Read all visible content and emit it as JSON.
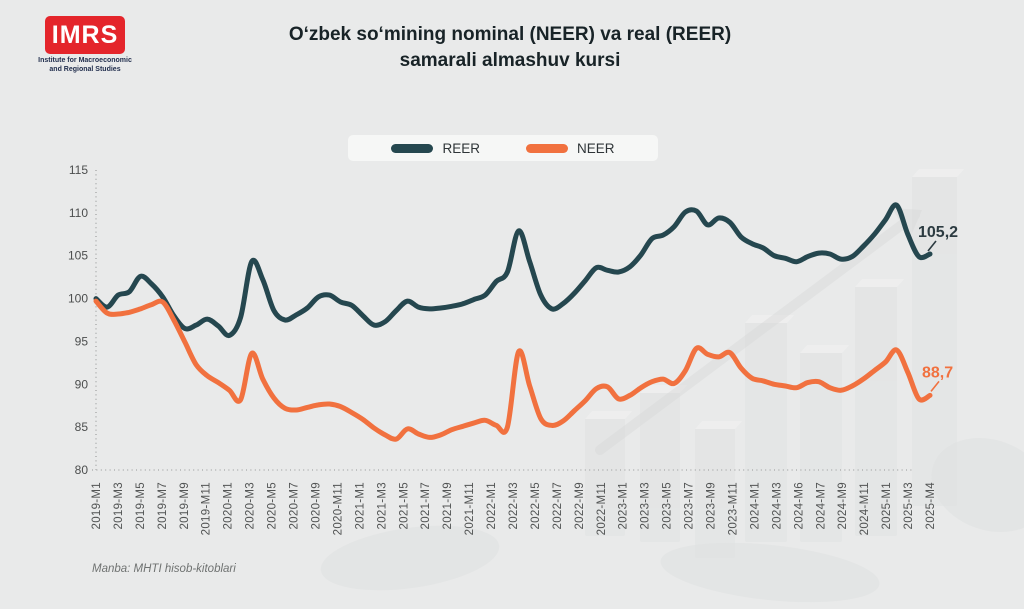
{
  "header": {
    "logo": {
      "acronym": "IMRS",
      "subtitle_line1": "Institute for Macroeconomic",
      "subtitle_line2": "and Regional Studies",
      "brand_color": "#e4252b"
    },
    "title_line1": "O‘zbek so‘mining nominal (NEER) va real (REER)",
    "title_line2": "samarali almashuv kursi"
  },
  "legend": [
    {
      "label": "REER",
      "color": "#25474f"
    },
    {
      "label": "NEER",
      "color": "#f1713f"
    }
  ],
  "source": "Manba: MHTI hisob-kitoblari",
  "colors": {
    "background": "#e9eaea",
    "axis_dots": "#b0b1b1",
    "reer_line": "#25474f",
    "neer_line": "#f1713f"
  },
  "chart_data": {
    "type": "line",
    "title": "O‘zbek so‘mining nominal (NEER) va real (REER) samarali almashuv kursi",
    "xlabel": "",
    "ylabel": "",
    "ylim": [
      80,
      115
    ],
    "yticks": [
      80,
      85,
      90,
      95,
      100,
      105,
      110,
      115
    ],
    "grid": false,
    "legend_position": "top-center",
    "x": [
      "2019-M1",
      "2019-M2",
      "2019-M3",
      "2019-M4",
      "2019-M5",
      "2019-M6",
      "2019-M7",
      "2019-M8",
      "2019-M9",
      "2019-M10",
      "2019-M11",
      "2019-M12",
      "2020-M1",
      "2020-M2",
      "2020-M3",
      "2020-M4",
      "2020-M5",
      "2020-M6",
      "2020-M7",
      "2020-M8",
      "2020-M9",
      "2020-M10",
      "2020-M11",
      "2020-M12",
      "2021-M1",
      "2021-M2",
      "2021-M3",
      "2021-M4",
      "2021-M5",
      "2021-M6",
      "2021-M7",
      "2021-M8",
      "2021-M9",
      "2021-M10",
      "2021-M11",
      "2021-M12",
      "2022-M1",
      "2022-M2",
      "2022-M3",
      "2022-M4",
      "2022-M5",
      "2022-M6",
      "2022-M7",
      "2022-M8",
      "2022-M9",
      "2022-M10",
      "2022-M11",
      "2022-M12",
      "2023-M1",
      "2023-M2",
      "2023-M3",
      "2023-M4",
      "2023-M5",
      "2023-M6",
      "2023-M7",
      "2023-M8",
      "2023-M9",
      "2023-M10",
      "2023-M11",
      "2023-M12",
      "2024-M1",
      "2024-M2",
      "2024-M3",
      "2024-M4",
      "2024-M5",
      "2024-M6",
      "2024-M7",
      "2024-M8",
      "2024-M9",
      "2024-M10",
      "2024-M11",
      "2024-M12",
      "2025-M1",
      "2025-M2",
      "2025-M3",
      "2025-M4"
    ],
    "x_visible_tick_labels": [
      "2019-M1",
      "2019-M3",
      "2019-M5",
      "2019-M7",
      "2019-M9",
      "2019-M11",
      "2020-M1",
      "2020-M3",
      "2020-M5",
      "2020-M7",
      "2020-M9",
      "2020-M11",
      "2021-M1",
      "2021-M3",
      "2021-M5",
      "2021-M7",
      "2021-M9",
      "2021-M11",
      "2022-M1",
      "2022-M3",
      "2022-M5",
      "2022-M7",
      "2022-M9",
      "2022-M11",
      "2023-M1",
      "2023-M3",
      "2023-M5",
      "2023-M7",
      "2023-M9",
      "2023-M11",
      "2024-M1",
      "2024-M3",
      "2024-M6",
      "2024-M7",
      "2024-M9",
      "2024-M11",
      "2025-M1",
      "2025-M3",
      "2025-M4"
    ],
    "series": [
      {
        "name": "REER",
        "color": "#25474f",
        "values": [
          100.0,
          99.0,
          100.4,
          100.8,
          102.6,
          101.7,
          100.2,
          98.0,
          96.5,
          96.9,
          97.6,
          96.8,
          95.7,
          97.8,
          104.3,
          102.2,
          98.6,
          97.5,
          98.1,
          98.9,
          100.2,
          100.4,
          99.6,
          99.2,
          98.0,
          96.9,
          97.3,
          98.6,
          99.7,
          99.0,
          98.8,
          98.9,
          99.1,
          99.4,
          99.9,
          100.4,
          102.0,
          103.1,
          107.9,
          104.3,
          100.4,
          98.8,
          99.4,
          100.6,
          102.1,
          103.6,
          103.3,
          103.1,
          103.7,
          105.1,
          107.0,
          107.4,
          108.4,
          110.1,
          110.2,
          108.6,
          109.4,
          108.9,
          107.2,
          106.4,
          105.9,
          105.0,
          104.7,
          104.3,
          104.9,
          105.3,
          105.2,
          104.6,
          104.9,
          106.1,
          107.5,
          109.2,
          110.9,
          107.5,
          104.9,
          105.2
        ]
      },
      {
        "name": "NEER",
        "color": "#f1713f",
        "values": [
          99.7,
          98.3,
          98.2,
          98.4,
          98.8,
          99.3,
          99.6,
          97.5,
          94.9,
          92.3,
          91.0,
          90.2,
          89.3,
          88.2,
          93.6,
          90.6,
          88.4,
          87.2,
          87.0,
          87.3,
          87.6,
          87.7,
          87.4,
          86.7,
          85.9,
          84.9,
          84.1,
          83.6,
          84.8,
          84.2,
          83.8,
          84.1,
          84.7,
          85.1,
          85.5,
          85.8,
          85.2,
          85.0,
          93.8,
          89.8,
          86.0,
          85.2,
          85.7,
          86.9,
          88.1,
          89.5,
          89.7,
          88.3,
          88.7,
          89.6,
          90.3,
          90.6,
          90.1,
          91.6,
          94.2,
          93.5,
          93.2,
          93.7,
          91.9,
          90.7,
          90.4,
          90.0,
          89.8,
          89.6,
          90.2,
          90.3,
          89.6,
          89.3,
          89.8,
          90.6,
          91.6,
          92.6,
          94.0,
          91.4,
          88.3,
          88.7
        ]
      }
    ],
    "last_value_labels": {
      "REER": "105,2",
      "NEER": "88,7"
    }
  }
}
